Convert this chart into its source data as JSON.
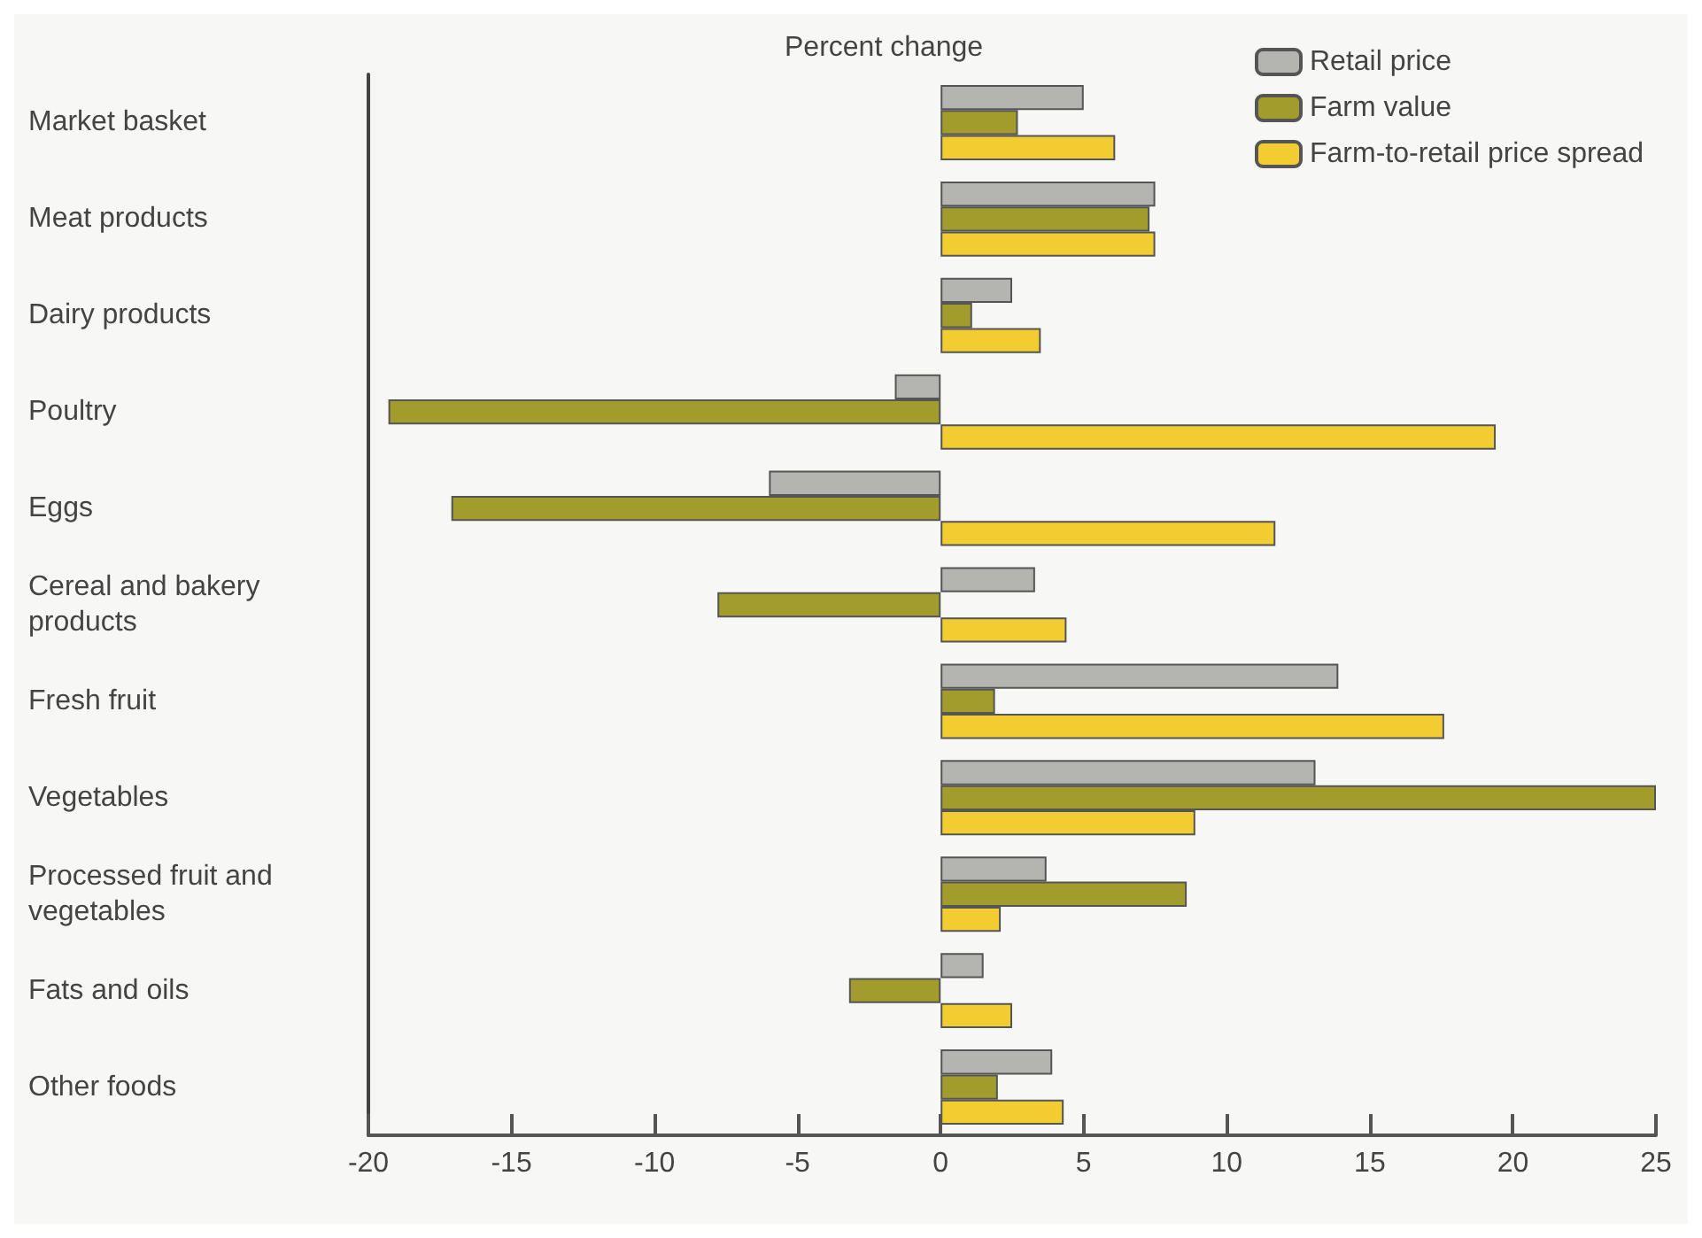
{
  "chart_data": {
    "type": "bar",
    "orientation": "horizontal",
    "xlabel": "Percent change",
    "categories": [
      "Market basket",
      "Meat products",
      "Dairy products",
      "Poultry",
      "Eggs",
      "Cereal and bakery products",
      "Fresh fruit",
      "Vegetables",
      "Processed fruit and vegetables",
      "Fats and oils",
      "Other foods"
    ],
    "series": [
      {
        "name": "Retail price",
        "color": "#b4b4b0",
        "values": [
          5.0,
          7.5,
          2.5,
          -1.6,
          -6.0,
          3.3,
          13.9,
          13.1,
          3.7,
          1.5,
          3.9
        ]
      },
      {
        "name": "Farm value",
        "color": "#a29c2c",
        "values": [
          2.7,
          7.3,
          1.1,
          -19.3,
          -17.1,
          -7.8,
          1.9,
          25.0,
          8.6,
          -3.2,
          2.0
        ]
      },
      {
        "name": "Farm-to-retail price spread",
        "color": "#f2cd32",
        "values": [
          6.1,
          7.5,
          3.5,
          19.4,
          11.7,
          4.4,
          17.6,
          8.9,
          2.1,
          2.5,
          4.3
        ]
      }
    ],
    "xlim": [
      -20,
      25
    ],
    "xticks": [
      -20,
      -15,
      -10,
      -5,
      0,
      5,
      10,
      15,
      20,
      25
    ],
    "grid": false,
    "legend": "top right"
  }
}
